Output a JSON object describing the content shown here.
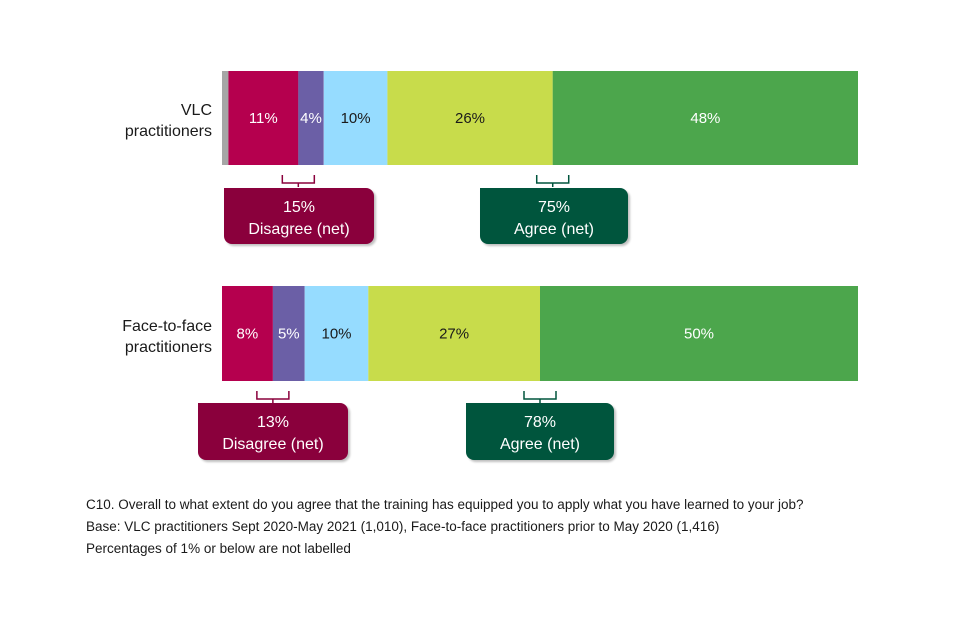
{
  "chart_data": {
    "type": "bar",
    "orientation": "horizontal",
    "stacked": true,
    "categories": [
      "VLC practitioners",
      "Face-to-face practitioners"
    ],
    "category_labels": [
      "VLC\npractitioners",
      "Face-to-face\npractitioners"
    ],
    "series": [
      {
        "values": [
          1,
          0
        ],
        "color": "#a6a6a6",
        "labels": [
          "",
          ""
        ]
      },
      {
        "values": [
          11,
          8
        ],
        "color": "#b5004e",
        "labels": [
          "11%",
          "8%"
        ]
      },
      {
        "values": [
          4,
          5
        ],
        "color": "#6b5fa6",
        "labels": [
          "4%",
          "5%"
        ]
      },
      {
        "values": [
          10,
          10
        ],
        "color": "#96dcff",
        "labels": [
          "10%",
          "10%"
        ]
      },
      {
        "values": [
          26,
          27
        ],
        "color": "#c8dc4b",
        "labels": [
          "26%",
          "27%"
        ]
      },
      {
        "values": [
          48,
          50
        ],
        "color": "#4ca64c",
        "labels": [
          "48%",
          "50%"
        ]
      }
    ],
    "xlim": [
      0,
      100
    ],
    "net": [
      {
        "disagree": {
          "value": "15%",
          "label": "Disagree (net)"
        },
        "agree": {
          "value": "75%",
          "label": "Agree (net)"
        }
      },
      {
        "disagree": {
          "value": "13%",
          "label": "Disagree (net)"
        },
        "agree": {
          "value": "78%",
          "label": "Agree (net)"
        }
      }
    ],
    "net_colors": {
      "disagree": "#8a003c",
      "agree": "#00553d"
    }
  },
  "footnotes": {
    "question": "C10. Overall to what extent do you agree that the training has equipped you to apply what you have learned to your job?",
    "base": "Base: VLC practitioners Sept 2020-May 2021 (1,010), Face-to-face practitioners prior to May 2020 (1,416)",
    "note": "Percentages of 1% or below are not labelled"
  }
}
